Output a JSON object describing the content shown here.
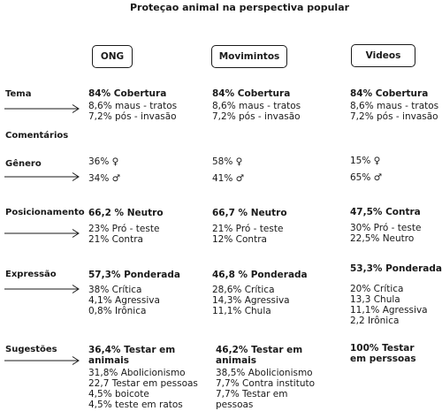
{
  "title": "Proteçao animal na perspectiva popular",
  "columns": [
    "ONG",
    "Movimintos",
    "Videos"
  ],
  "rows": {
    "tema": {
      "label": "Tema",
      "ong": [
        "84% Cobertura",
        "8,6% maus - tratos",
        "7,2% pós - invasão"
      ],
      "mov": [
        "84% Cobertura",
        "8,6% maus - tratos",
        "7,2% pós - invasão"
      ],
      "vid": [
        "84% Cobertura",
        "8,6% maus - tratos",
        "7,2% pós - invasão"
      ]
    },
    "comentarios": {
      "label": "Comentários"
    },
    "genero": {
      "label": "Gênero",
      "ong": [
        "36% ♀",
        "34% ♂"
      ],
      "mov": [
        "58% ♀",
        "41% ♂"
      ],
      "vid": [
        "15% ♀",
        "65% ♂"
      ]
    },
    "posicionamento": {
      "label": "Posicionamento",
      "ong": [
        "66,2 % Neutro",
        "23% Pró - teste",
        "21% Contra"
      ],
      "mov": [
        "66,7 % Neutro",
        "21% Pró - teste",
        "12% Contra"
      ],
      "vid": [
        "47,5% Contra",
        "30% Pró - teste",
        "22,5% Neutro"
      ]
    },
    "expressao": {
      "label": "Expressão",
      "ong": [
        "57,3% Ponderada",
        "38% Crítica",
        "4,1% Agressiva",
        "0,8% Irônica"
      ],
      "mov": [
        "46,8 % Ponderada",
        "28,6% Crítica",
        "14,3% Agressiva",
        "11,1%  Chula"
      ],
      "vid": [
        "53,3% Ponderada",
        "20% Crítica",
        "13,3 Chula",
        "11,1% Agressiva",
        "2,2 Irônica"
      ]
    },
    "sugestoes": {
      "label": "Sugestões",
      "ong": [
        "36,4% Testar em",
        "animais",
        "31,8% Abolicionismo",
        "22,7 Testar em pessoas",
        "4,5% boicote",
        "4,5% teste em ratos"
      ],
      "mov": [
        "46,2% Testar em",
        "animais",
        "38,5% Abolicionismo",
        "7,7% Contra instituto",
        "7,7% Testar em",
        "pessoas"
      ],
      "vid": [
        "100% Testar",
        "em perssoas"
      ]
    }
  }
}
